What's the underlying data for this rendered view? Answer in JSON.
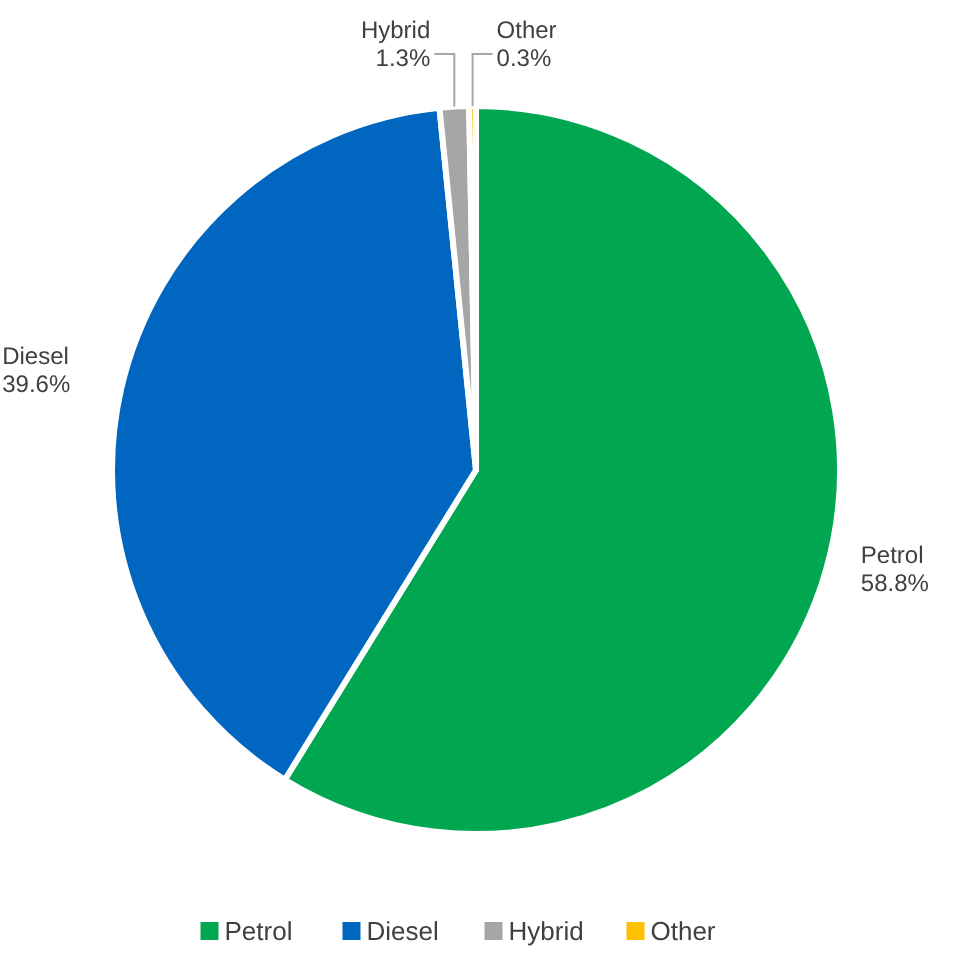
{
  "chart_data": {
    "type": "pie",
    "categories": [
      "Petrol",
      "Diesel",
      "Hybrid",
      "Other"
    ],
    "values": [
      58.8,
      39.6,
      1.3,
      0.3
    ],
    "colors": [
      "#00a650",
      "#0066bf",
      "#a6a6a6",
      "#ffc000"
    ],
    "value_labels": [
      "58.8%",
      "39.6%",
      "1.3%",
      "0.3%"
    ],
    "legend": "bottom"
  }
}
